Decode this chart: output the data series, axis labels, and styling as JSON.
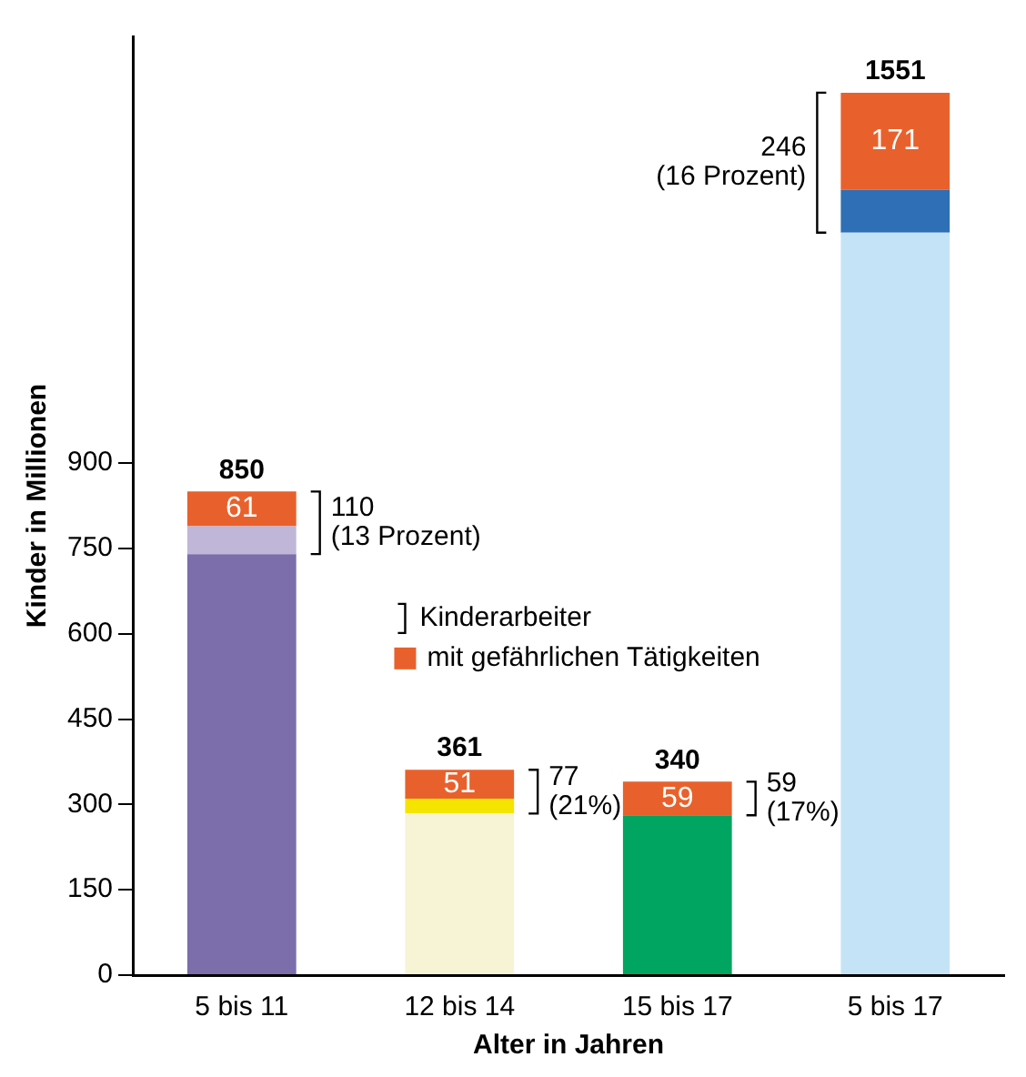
{
  "chart_data": {
    "type": "bar",
    "stacked": true,
    "xlabel": "Alter in Jahren",
    "ylabel": "Kinder in Millionen",
    "categories": [
      "5 bis 11",
      "12 bis 14",
      "15 bis 17",
      "5 bis 17"
    ],
    "series": [
      {
        "colors": [
          "#7b6eab",
          "#f7f3d5",
          "#00a562",
          "#c5e3f7"
        ],
        "values": [
          740,
          284,
          281,
          1305
        ]
      },
      {
        "colors": [
          "#c0b6d8",
          "#f5e400",
          "#00a562",
          "#2e6fb5"
        ],
        "values": [
          49,
          26,
          0,
          75
        ]
      },
      {
        "name": "mit gefährlichen Tätigkeiten",
        "color": "#e8612c",
        "values": [
          61,
          51,
          59,
          171
        ],
        "value_labels": [
          "61",
          "51",
          "59",
          "171"
        ]
      }
    ],
    "totals": [
      "850",
      "361",
      "340",
      "1551"
    ],
    "annotations": [
      "Kinderarbeiter",
      "110\n(13 Prozent)",
      "77\n(21%)",
      "59\n(17%)",
      "246\n(16 Prozent)"
    ],
    "ylim": [
      0,
      1650
    ],
    "yticks": [
      0,
      150,
      300,
      450,
      600,
      750,
      900
    ],
    "grid": false,
    "legend": "center"
  }
}
